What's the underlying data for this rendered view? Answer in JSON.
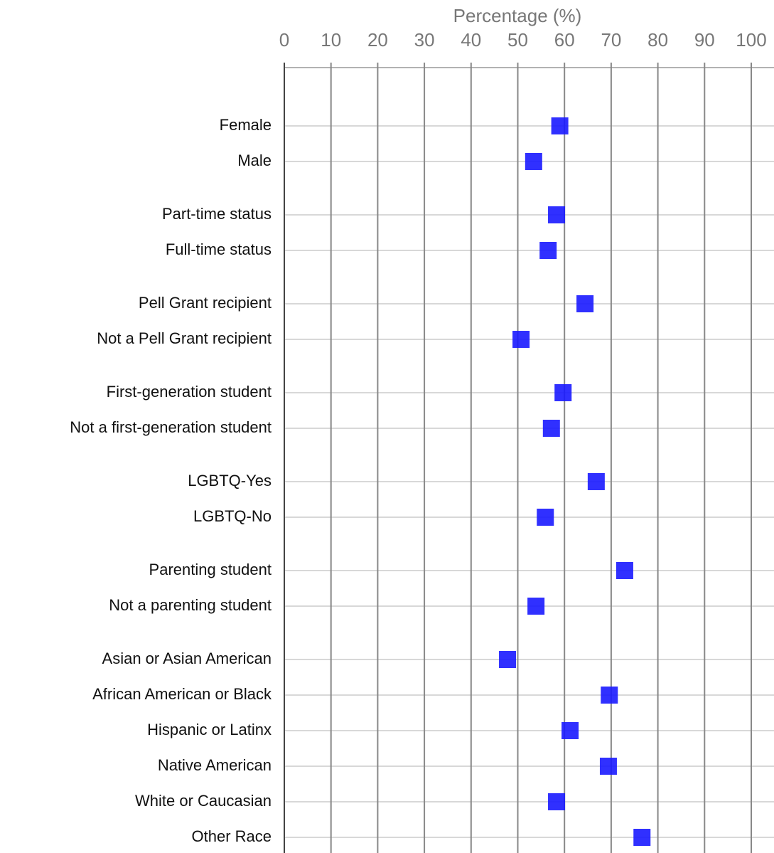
{
  "chart_data": {
    "type": "dot",
    "x_label": "Percentage (%)",
    "xlim": [
      0,
      100
    ],
    "xticks": [
      0,
      10,
      20,
      30,
      40,
      50,
      60,
      70,
      80,
      90,
      100
    ],
    "color": "#1a1aff",
    "groups": [
      {
        "categories": [
          "Female",
          "Male"
        ],
        "values": [
          59.0,
          53.4
        ]
      },
      {
        "categories": [
          "Part-time status",
          "Full-time status"
        ],
        "values": [
          58.3,
          56.5
        ]
      },
      {
        "categories": [
          "Pell Grant recipient",
          "Not a Pell Grant recipient"
        ],
        "values": [
          64.4,
          50.7
        ]
      },
      {
        "categories": [
          "First-generation student",
          "Not a first-generation student"
        ],
        "values": [
          59.7,
          57.2
        ]
      },
      {
        "categories": [
          "LGBTQ-Yes",
          "LGBTQ-No"
        ],
        "values": [
          66.8,
          55.9
        ]
      },
      {
        "categories": [
          "Parenting student",
          "Not a parenting student"
        ],
        "values": [
          72.9,
          53.9
        ]
      },
      {
        "categories": [
          "Asian or Asian American",
          "African American or Black",
          "Hispanic or Latinx",
          "Native American",
          "White or Caucasian",
          "Other Race"
        ],
        "values": [
          47.8,
          69.6,
          61.2,
          69.4,
          58.3,
          76.6
        ]
      }
    ]
  }
}
